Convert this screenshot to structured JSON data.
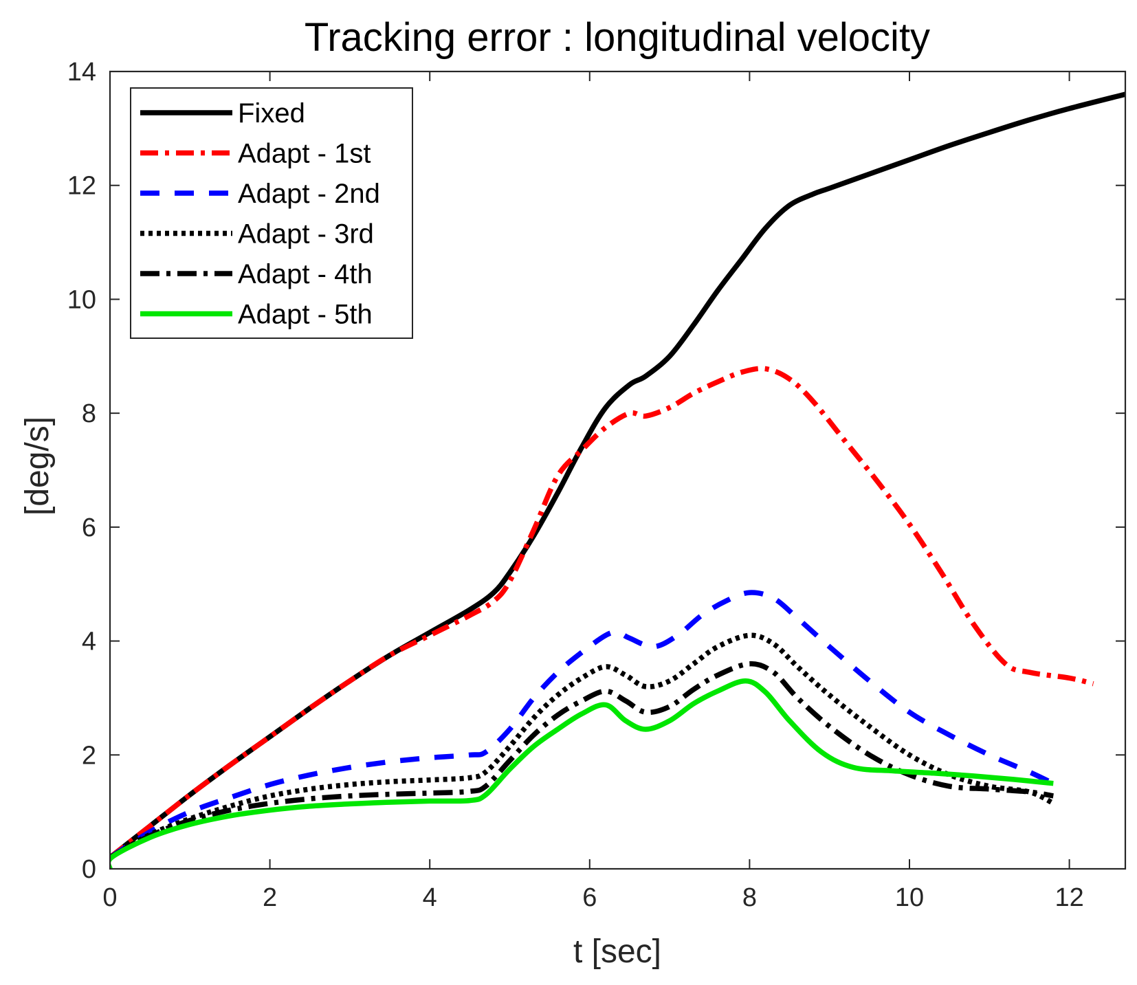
{
  "chart_data": {
    "type": "line",
    "title": "Tracking error : longitudinal velocity",
    "xlabel": "t [sec]",
    "ylabel": "[deg/s]",
    "xlim": [
      0,
      12.7
    ],
    "ylim": [
      0,
      14
    ],
    "xticks": [
      0,
      2,
      4,
      6,
      8,
      10,
      12
    ],
    "yticks": [
      0,
      2,
      4,
      6,
      8,
      10,
      12,
      14
    ],
    "grid": false,
    "legend_position": "top-left",
    "series": [
      {
        "name": "Fixed",
        "color": "#000000",
        "dash": "solid",
        "x": [
          0,
          0.5,
          1,
          1.5,
          2,
          2.5,
          3,
          3.5,
          4,
          4.5,
          4.8,
          5,
          5.3,
          5.6,
          5.9,
          6.2,
          6.5,
          6.7,
          7,
          7.3,
          7.6,
          7.9,
          8.2,
          8.5,
          8.8,
          9,
          9.5,
          10,
          10.5,
          11,
          11.5,
          12,
          12.7
        ],
        "y": [
          0.2,
          0.75,
          1.3,
          1.82,
          2.32,
          2.82,
          3.3,
          3.75,
          4.15,
          4.55,
          4.85,
          5.2,
          5.85,
          6.6,
          7.4,
          8.1,
          8.5,
          8.65,
          9.0,
          9.55,
          10.15,
          10.7,
          11.25,
          11.65,
          11.85,
          11.95,
          12.2,
          12.45,
          12.7,
          12.93,
          13.15,
          13.35,
          13.6
        ]
      },
      {
        "name": "Adapt - 1st",
        "color": "#ff0000",
        "dash": "dashdot",
        "x": [
          0,
          0.5,
          1,
          1.5,
          2,
          2.5,
          3,
          3.5,
          4,
          4.5,
          4.8,
          5,
          5.3,
          5.6,
          5.9,
          6.2,
          6.5,
          6.7,
          7,
          7.3,
          7.6,
          7.9,
          8.2,
          8.5,
          8.8,
          9.2,
          9.6,
          10,
          10.4,
          10.8,
          11.2,
          11.5,
          12,
          12.3
        ],
        "y": [
          0.2,
          0.75,
          1.3,
          1.82,
          2.32,
          2.82,
          3.3,
          3.75,
          4.1,
          4.45,
          4.7,
          5.05,
          5.95,
          6.9,
          7.35,
          7.75,
          8.0,
          7.95,
          8.1,
          8.35,
          8.55,
          8.72,
          8.78,
          8.6,
          8.2,
          7.5,
          6.8,
          6.05,
          5.2,
          4.3,
          3.6,
          3.45,
          3.35,
          3.25
        ]
      },
      {
        "name": "Adapt - 2nd",
        "color": "#0000ff",
        "dash": "dashed",
        "x": [
          0,
          0.5,
          1,
          1.5,
          2,
          2.5,
          3,
          3.5,
          4,
          4.5,
          4.7,
          5,
          5.3,
          5.6,
          5.9,
          6.2,
          6.35,
          6.5,
          6.8,
          7.1,
          7.4,
          7.7,
          8,
          8.3,
          8.6,
          9,
          9.5,
          10,
          10.5,
          11,
          11.5,
          11.8
        ],
        "y": [
          0.2,
          0.65,
          1.0,
          1.25,
          1.48,
          1.65,
          1.78,
          1.88,
          1.95,
          2.0,
          2.05,
          2.45,
          3.0,
          3.45,
          3.8,
          4.1,
          4.15,
          4.05,
          3.9,
          4.1,
          4.45,
          4.7,
          4.85,
          4.75,
          4.4,
          3.9,
          3.3,
          2.75,
          2.35,
          2.0,
          1.7,
          1.5
        ]
      },
      {
        "name": "Adapt - 3rd",
        "color": "#000000",
        "dash": "dotted",
        "x": [
          0,
          0.5,
          1,
          1.5,
          2,
          2.5,
          3,
          3.5,
          4,
          4.5,
          4.7,
          5,
          5.3,
          5.6,
          5.9,
          6.2,
          6.45,
          6.7,
          7,
          7.3,
          7.6,
          8,
          8.3,
          8.6,
          9,
          9.5,
          10,
          10.5,
          11,
          11.5,
          11.8
        ],
        "y": [
          0.2,
          0.6,
          0.88,
          1.1,
          1.28,
          1.4,
          1.48,
          1.53,
          1.56,
          1.6,
          1.7,
          2.15,
          2.65,
          3.05,
          3.35,
          3.55,
          3.4,
          3.2,
          3.3,
          3.6,
          3.9,
          4.1,
          3.95,
          3.55,
          3.05,
          2.5,
          2.0,
          1.65,
          1.45,
          1.35,
          1.15
        ]
      },
      {
        "name": "Adapt - 4th",
        "color": "#000000",
        "dash": "longdashdot",
        "x": [
          0,
          0.5,
          1,
          1.5,
          2,
          2.5,
          3,
          3.5,
          4,
          4.5,
          4.7,
          5,
          5.3,
          5.6,
          5.9,
          6.2,
          6.45,
          6.7,
          7,
          7.3,
          7.6,
          8,
          8.3,
          8.6,
          9,
          9.5,
          10,
          10.5,
          11,
          11.5,
          11.8
        ],
        "y": [
          0.2,
          0.58,
          0.85,
          1.03,
          1.15,
          1.23,
          1.28,
          1.31,
          1.33,
          1.36,
          1.45,
          1.9,
          2.35,
          2.7,
          2.95,
          3.12,
          2.95,
          2.75,
          2.85,
          3.15,
          3.4,
          3.6,
          3.45,
          3.0,
          2.5,
          2.0,
          1.65,
          1.45,
          1.4,
          1.35,
          1.28
        ]
      },
      {
        "name": "Adapt - 5th",
        "color": "#00e600",
        "dash": "solid",
        "x": [
          0,
          0.02,
          0.5,
          1,
          1.5,
          2,
          2.5,
          3,
          3.5,
          4,
          4.5,
          4.7,
          5,
          5.3,
          5.6,
          5.9,
          6.2,
          6.45,
          6.7,
          7,
          7.3,
          7.6,
          7.95,
          8.2,
          8.5,
          8.9,
          9.3,
          9.8,
          10.3,
          10.8,
          11.3,
          11.8
        ],
        "y": [
          0.0,
          0.2,
          0.55,
          0.78,
          0.93,
          1.03,
          1.1,
          1.14,
          1.17,
          1.19,
          1.2,
          1.3,
          1.75,
          2.15,
          2.45,
          2.72,
          2.88,
          2.6,
          2.45,
          2.6,
          2.9,
          3.12,
          3.3,
          3.1,
          2.6,
          2.05,
          1.78,
          1.72,
          1.68,
          1.63,
          1.57,
          1.5
        ]
      }
    ]
  }
}
